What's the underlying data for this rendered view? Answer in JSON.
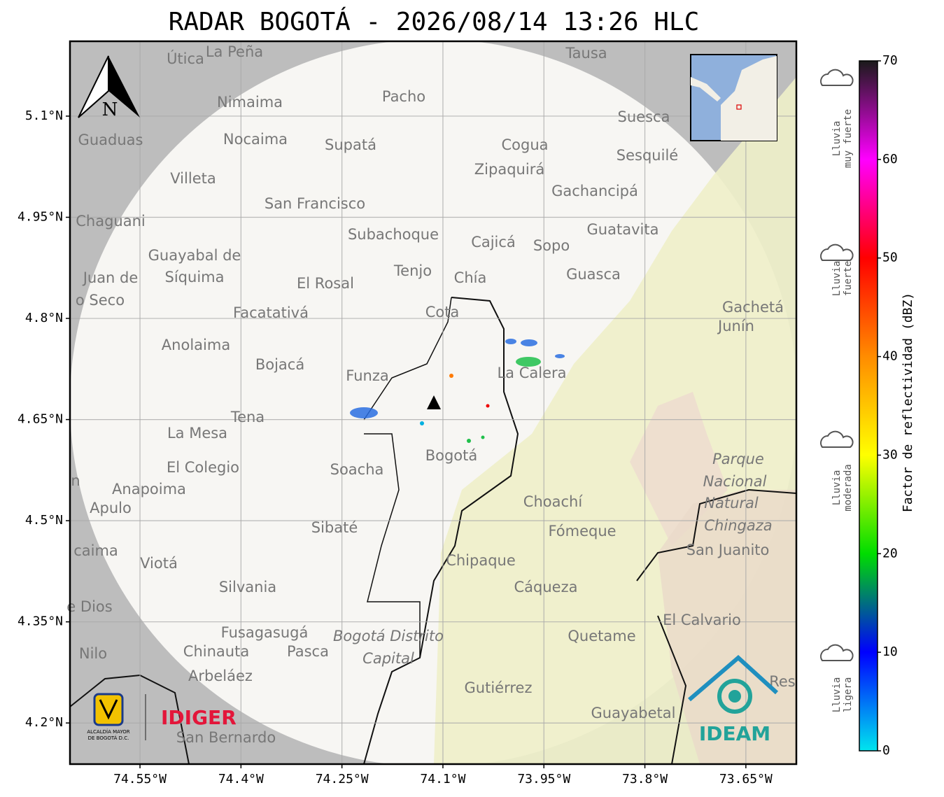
{
  "title": "RADAR BOGOTÁ - 2026/08/14 13:26 HLC",
  "axes": {
    "xlim": [
      -74.654,
      -73.575
    ],
    "ylim": [
      4.139,
      5.211
    ],
    "xticks": [
      {
        "value": -74.55,
        "label": "74.55°W"
      },
      {
        "value": -74.4,
        "label": "74.4°W"
      },
      {
        "value": -74.25,
        "label": "74.25°W"
      },
      {
        "value": -74.1,
        "label": "74.1°W"
      },
      {
        "value": -73.95,
        "label": "73.95°W"
      },
      {
        "value": -73.8,
        "label": "73.8°W"
      },
      {
        "value": -73.65,
        "label": "73.65°W"
      }
    ],
    "yticks": [
      {
        "value": 5.1,
        "label": "5.1°N"
      },
      {
        "value": 4.95,
        "label": "4.95°N"
      },
      {
        "value": 4.8,
        "label": "4.8°N"
      },
      {
        "value": 4.65,
        "label": "4.65°N"
      },
      {
        "value": 4.5,
        "label": "4.5°N"
      },
      {
        "value": 4.35,
        "label": "4.35°N"
      },
      {
        "value": 4.2,
        "label": "4.2°N"
      }
    ],
    "grid": true
  },
  "colorbar": {
    "label": "Factor de reflectividad (dBZ)",
    "clim": [
      0,
      70
    ],
    "ticks": [
      0,
      10,
      20,
      30,
      40,
      50,
      60,
      70
    ],
    "colors": [
      "#00e5ee",
      "#0000ff",
      "#00dd00",
      "#ffff00",
      "#ff8c00",
      "#ff0000",
      "#ff00ff",
      "#1a1a1a"
    ]
  },
  "rain_levels": [
    [
      "Lluvia",
      "muy fuerte"
    ],
    [
      "Lluvia",
      "fuerte"
    ],
    [
      "Lluvia",
      "moderada"
    ],
    [
      "Lluvia",
      "ligera"
    ]
  ],
  "north": "N",
  "logos": {
    "alcaldia": [
      "ALCALDÍA MAYOR",
      "DE BOGOTÁ D.C."
    ],
    "idiger": "IDIGER",
    "ideam": "IDEAM"
  },
  "places": [
    "La Peña",
    "Útica",
    "Tausa",
    "Pacho",
    "Nimaima",
    "Suesca",
    "Guaduas",
    "Nocaima",
    "Supatá",
    "Cogua",
    "Sesquilé",
    "Zipaquirá",
    "Villeta",
    "Gachancipá",
    "San Francisco",
    "Chaguani",
    "Guatavita",
    "Subachoque",
    "Cajicá",
    "Sopo",
    "Guayabal de",
    "Síquima",
    "Tenjo",
    "Juan de",
    "Chía",
    "Guasca",
    "El Rosal",
    "o Seco",
    "Gachetá",
    "Facatativá",
    "Cota",
    "Junín",
    "Anolaima",
    "Bojacá",
    "Funza",
    "La Calera",
    "Tena",
    "La Mesa",
    "El Colegio",
    "Parque",
    "Soacha",
    "Bogotá",
    "n",
    "Anapoima",
    "Nacional",
    "Apulo",
    "Choachí",
    "Natural",
    "Chingaza",
    "Sibaté",
    "Fómeque",
    "caima",
    "San Juanito",
    "Viotá",
    "Chipaque",
    "Silvania",
    "Cáqueza",
    "e Dios",
    "El Calvario",
    "Fusagasugá",
    "Bogotá Distrito",
    "Quetame",
    "Nilo",
    "Chinauta",
    "Pasca",
    "Capital",
    "Arbeláez",
    "Gutiérrez",
    "Res",
    "Guayabetal",
    "San Bernardo"
  ]
}
